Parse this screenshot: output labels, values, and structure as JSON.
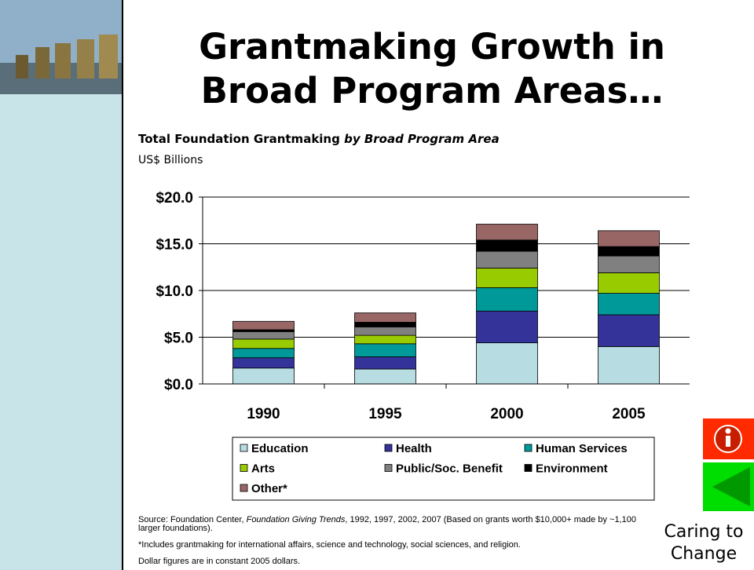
{
  "slide": {
    "title_line1": "Grantmaking Growth in",
    "title_line2": "Broad Program Areas…",
    "caption": "Caring to Change"
  },
  "chart_data": {
    "type": "stacked_bar",
    "title": "Total Foundation Grantmaking",
    "title_italic": "by Broad Program Area",
    "subtitle": "US$ Billions",
    "categories": [
      "1990",
      "1995",
      "2000",
      "2005"
    ],
    "series": [
      {
        "name": "Education",
        "color": "#b7dde3",
        "values": [
          1.7,
          1.6,
          4.4,
          4.0
        ]
      },
      {
        "name": "Health",
        "color": "#333399",
        "values": [
          1.1,
          1.3,
          3.4,
          3.4
        ]
      },
      {
        "name": "Human Services",
        "color": "#009999",
        "values": [
          1.0,
          1.4,
          2.5,
          2.3
        ]
      },
      {
        "name": "Arts",
        "color": "#99cc00",
        "values": [
          1.0,
          0.9,
          2.1,
          2.2
        ]
      },
      {
        "name": "Public/Soc. Benefit",
        "color": "#808080",
        "values": [
          0.8,
          0.9,
          1.8,
          1.8
        ]
      },
      {
        "name": "Environment",
        "color": "#000000",
        "values": [
          0.2,
          0.5,
          1.2,
          1.0
        ]
      },
      {
        "name": "Other*",
        "color": "#996666",
        "values": [
          0.9,
          1.0,
          1.7,
          1.7
        ]
      }
    ],
    "ylim": [
      0,
      20
    ],
    "yticks": [
      {
        "value": 0,
        "label": "$0.0"
      },
      {
        "value": 5,
        "label": "$5.0"
      },
      {
        "value": 10,
        "label": "$10.0"
      },
      {
        "value": 15,
        "label": "$15.0"
      },
      {
        "value": 20,
        "label": "$20.0"
      }
    ],
    "grid": true
  },
  "notes": {
    "source_prefix": "Source:  Foundation Center, ",
    "source_italic": "Foundation Giving Trends",
    "source_suffix": ", 1992, 1997, 2002, 2007 (Based on grants worth $10,000+ made by ~1,100 larger foundations).",
    "footnote": "*Includes grantmaking for international affairs, science and technology, social sciences, and religion.",
    "dollars": "Dollar figures are in constant 2005 dollars."
  }
}
